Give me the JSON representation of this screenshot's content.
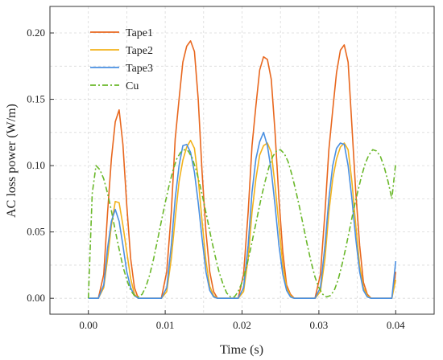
{
  "chart_data": {
    "type": "line",
    "xlabel": "Time (s)",
    "ylabel": "AC loss power (W/m)",
    "xlim": [
      -0.005,
      0.045
    ],
    "ylim": [
      -0.012,
      0.22
    ],
    "xticks": [
      {
        "value": 0.0,
        "label": "0.00"
      },
      {
        "value": 0.01,
        "label": "0.01"
      },
      {
        "value": 0.02,
        "label": "0.02"
      },
      {
        "value": 0.03,
        "label": "0.03"
      },
      {
        "value": 0.04,
        "label": "0.04"
      }
    ],
    "yticks": [
      {
        "value": 0.0,
        "label": "0.00"
      },
      {
        "value": 0.05,
        "label": "0.05"
      },
      {
        "value": 0.1,
        "label": "0.10"
      },
      {
        "value": 0.15,
        "label": "0.15"
      },
      {
        "value": 0.2,
        "label": "0.20"
      }
    ],
    "grid": true,
    "legend_position": "top-left",
    "series": [
      {
        "name": "Tape1",
        "color": "#e8671e",
        "style": "solid",
        "x": [
          0.0,
          0.0013,
          0.002,
          0.0025,
          0.003,
          0.0035,
          0.004,
          0.0045,
          0.005,
          0.0055,
          0.006,
          0.0065,
          0.007,
          0.0095,
          0.0102,
          0.0108,
          0.0113,
          0.0118,
          0.0123,
          0.0128,
          0.0133,
          0.0138,
          0.0143,
          0.0148,
          0.0153,
          0.0158,
          0.0163,
          0.0168,
          0.0195,
          0.0202,
          0.0208,
          0.0213,
          0.0218,
          0.0223,
          0.0228,
          0.0233,
          0.0238,
          0.0243,
          0.0248,
          0.0253,
          0.0258,
          0.0263,
          0.0268,
          0.0295,
          0.0302,
          0.0308,
          0.0313,
          0.0318,
          0.0323,
          0.0328,
          0.0333,
          0.0338,
          0.0343,
          0.0348,
          0.0353,
          0.0358,
          0.0363,
          0.0368,
          0.0395,
          0.04
        ],
        "y": [
          0.0,
          0.0,
          0.018,
          0.065,
          0.105,
          0.133,
          0.142,
          0.116,
          0.07,
          0.03,
          0.008,
          0.0,
          0.0,
          0.0,
          0.02,
          0.065,
          0.12,
          0.15,
          0.178,
          0.19,
          0.194,
          0.186,
          0.15,
          0.095,
          0.05,
          0.02,
          0.005,
          0.0,
          0.0,
          0.018,
          0.065,
          0.115,
          0.145,
          0.172,
          0.182,
          0.18,
          0.165,
          0.125,
          0.075,
          0.035,
          0.01,
          0.003,
          0.0,
          0.0,
          0.018,
          0.065,
          0.112,
          0.142,
          0.17,
          0.187,
          0.191,
          0.178,
          0.13,
          0.08,
          0.04,
          0.012,
          0.003,
          0.0,
          0.0,
          0.02
        ]
      },
      {
        "name": "Tape2",
        "color": "#f2b21b",
        "style": "solid",
        "x": [
          0.0,
          0.0013,
          0.002,
          0.0025,
          0.003,
          0.0035,
          0.004,
          0.0045,
          0.005,
          0.0055,
          0.006,
          0.0065,
          0.007,
          0.0095,
          0.0102,
          0.0108,
          0.0113,
          0.0118,
          0.0123,
          0.0128,
          0.0133,
          0.0138,
          0.0143,
          0.0148,
          0.0153,
          0.0158,
          0.0163,
          0.0168,
          0.0195,
          0.0202,
          0.0208,
          0.0213,
          0.0218,
          0.0223,
          0.0228,
          0.0233,
          0.0238,
          0.0243,
          0.0248,
          0.0253,
          0.0258,
          0.0263,
          0.0268,
          0.0295,
          0.0302,
          0.0308,
          0.0313,
          0.0318,
          0.0323,
          0.0328,
          0.0333,
          0.0338,
          0.0343,
          0.0348,
          0.0353,
          0.0358,
          0.0363,
          0.0368,
          0.0395,
          0.04
        ],
        "y": [
          0.0,
          0.0,
          0.008,
          0.03,
          0.055,
          0.073,
          0.072,
          0.055,
          0.035,
          0.015,
          0.003,
          0.0,
          0.0,
          0.0,
          0.005,
          0.03,
          0.06,
          0.088,
          0.104,
          0.114,
          0.119,
          0.113,
          0.09,
          0.058,
          0.028,
          0.009,
          0.002,
          0.0,
          0.0,
          0.005,
          0.03,
          0.065,
          0.09,
          0.108,
          0.115,
          0.117,
          0.11,
          0.085,
          0.055,
          0.025,
          0.008,
          0.002,
          0.0,
          0.0,
          0.005,
          0.03,
          0.065,
          0.09,
          0.105,
          0.114,
          0.117,
          0.112,
          0.088,
          0.055,
          0.025,
          0.008,
          0.002,
          0.0,
          0.0,
          0.014
        ]
      },
      {
        "name": "Tape3",
        "color": "#4a90e2",
        "style": "solid",
        "x": [
          0.0,
          0.0013,
          0.002,
          0.0025,
          0.003,
          0.0035,
          0.004,
          0.0045,
          0.005,
          0.0055,
          0.006,
          0.0065,
          0.007,
          0.0095,
          0.0102,
          0.0108,
          0.0113,
          0.0118,
          0.0123,
          0.0128,
          0.0133,
          0.0138,
          0.0143,
          0.0148,
          0.0153,
          0.0158,
          0.0163,
          0.0168,
          0.0195,
          0.0202,
          0.0208,
          0.0213,
          0.0218,
          0.0223,
          0.0228,
          0.0233,
          0.0238,
          0.0243,
          0.0248,
          0.0253,
          0.0258,
          0.0263,
          0.0268,
          0.0295,
          0.0302,
          0.0308,
          0.0313,
          0.0318,
          0.0323,
          0.0328,
          0.0333,
          0.0338,
          0.0343,
          0.0348,
          0.0353,
          0.0358,
          0.0363,
          0.0368,
          0.0395,
          0.04
        ],
        "y": [
          0.0,
          0.0,
          0.01,
          0.038,
          0.058,
          0.067,
          0.058,
          0.04,
          0.02,
          0.008,
          0.002,
          0.0,
          0.0,
          0.0,
          0.008,
          0.04,
          0.075,
          0.1,
          0.115,
          0.116,
          0.11,
          0.095,
          0.072,
          0.045,
          0.02,
          0.006,
          0.001,
          0.0,
          0.0,
          0.008,
          0.04,
          0.08,
          0.105,
          0.118,
          0.125,
          0.115,
          0.096,
          0.07,
          0.04,
          0.018,
          0.006,
          0.001,
          0.0,
          0.0,
          0.008,
          0.04,
          0.075,
          0.1,
          0.113,
          0.117,
          0.116,
          0.1,
          0.075,
          0.045,
          0.02,
          0.006,
          0.001,
          0.0,
          0.0,
          0.028
        ]
      },
      {
        "name": "Cu",
        "color": "#6ab82a",
        "style": "dash-dot",
        "x": [
          0.0,
          0.0005,
          0.001,
          0.0015,
          0.002,
          0.0025,
          0.003,
          0.0035,
          0.004,
          0.0045,
          0.005,
          0.0055,
          0.006,
          0.0065,
          0.007,
          0.0075,
          0.008,
          0.0085,
          0.009,
          0.0095,
          0.01,
          0.0105,
          0.011,
          0.0115,
          0.012,
          0.0125,
          0.013,
          0.0135,
          0.014,
          0.0145,
          0.015,
          0.0155,
          0.016,
          0.0165,
          0.017,
          0.0175,
          0.018,
          0.0185,
          0.019,
          0.0195,
          0.02,
          0.0205,
          0.021,
          0.0215,
          0.022,
          0.0225,
          0.023,
          0.0235,
          0.024,
          0.0245,
          0.025,
          0.0255,
          0.026,
          0.0265,
          0.027,
          0.0275,
          0.028,
          0.0285,
          0.029,
          0.0295,
          0.03,
          0.0305,
          0.031,
          0.0315,
          0.032,
          0.0325,
          0.033,
          0.0335,
          0.034,
          0.0345,
          0.035,
          0.0355,
          0.036,
          0.0365,
          0.037,
          0.0375,
          0.038,
          0.0385,
          0.039,
          0.0395,
          0.04
        ],
        "y": [
          0.0,
          0.079,
          0.1,
          0.097,
          0.09,
          0.079,
          0.066,
          0.051,
          0.037,
          0.024,
          0.014,
          0.006,
          0.002,
          0.001,
          0.003,
          0.009,
          0.018,
          0.03,
          0.044,
          0.058,
          0.072,
          0.085,
          0.096,
          0.105,
          0.11,
          0.112,
          0.111,
          0.106,
          0.097,
          0.086,
          0.073,
          0.059,
          0.045,
          0.032,
          0.02,
          0.011,
          0.004,
          0.001,
          0.001,
          0.005,
          0.012,
          0.022,
          0.034,
          0.048,
          0.062,
          0.076,
          0.088,
          0.099,
          0.107,
          0.111,
          0.112,
          0.109,
          0.103,
          0.093,
          0.081,
          0.068,
          0.054,
          0.04,
          0.027,
          0.016,
          0.008,
          0.003,
          0.001,
          0.002,
          0.006,
          0.014,
          0.025,
          0.038,
          0.052,
          0.066,
          0.079,
          0.091,
          0.101,
          0.108,
          0.112,
          0.111,
          0.107,
          0.099,
          0.088,
          0.075,
          0.102
        ]
      }
    ]
  }
}
